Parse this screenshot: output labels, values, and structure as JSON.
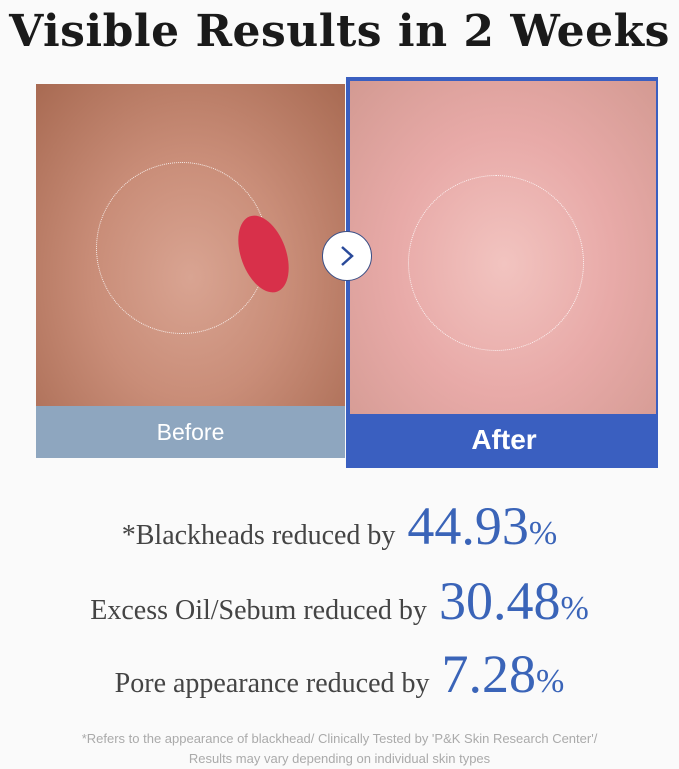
{
  "title": "Visible Results in 2 Weeks",
  "before": {
    "label": "Before"
  },
  "after": {
    "label": "After"
  },
  "arrow_icon": "chevron-right-icon",
  "colors": {
    "before_bar": "#8ea6bf",
    "after_bar": "#3a5fc0",
    "accent_number": "#3a64b8"
  },
  "stats": [
    {
      "label": "*Blackheads reduced by",
      "value": "44.93",
      "unit": "%"
    },
    {
      "label": "Excess Oil/Sebum reduced by",
      "value": "30.48",
      "unit": "%"
    },
    {
      "label": "Pore appearance reduced by",
      "value": "7.28",
      "unit": "%"
    }
  ],
  "footnote": {
    "line1": "*Refers to the appearance of blackhead/ Clinically Tested by 'P&K Skin Research Center'/",
    "line2": "Results may vary depending on individual skin types"
  }
}
